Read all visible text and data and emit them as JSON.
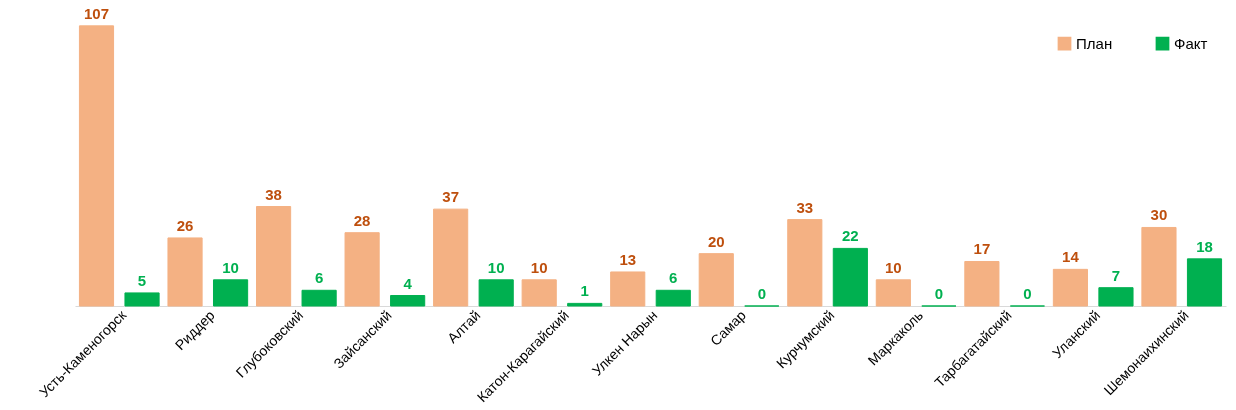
{
  "chart_data": {
    "type": "bar",
    "categories": [
      "Усть-Каменогорск",
      "Риддер",
      "Глубоковский",
      "Зайсанский",
      "Алтай",
      "Катон-Карагайский",
      "Улкен Нарын",
      "Самар",
      "Курчумский",
      "Маркаколь",
      "Тарбагатайский",
      "Уланский",
      "Шемонаихинский"
    ],
    "series": [
      {
        "name": "План",
        "color": "#f4b183",
        "values": [
          107,
          26,
          38,
          28,
          37,
          10,
          13,
          20,
          33,
          10,
          17,
          14,
          30
        ]
      },
      {
        "name": "Факт",
        "color": "#00b050",
        "values": [
          5,
          10,
          6,
          4,
          10,
          1,
          6,
          0,
          22,
          0,
          0,
          7,
          18
        ]
      }
    ],
    "data_labels": true,
    "grid": false,
    "legend": "top right"
  }
}
